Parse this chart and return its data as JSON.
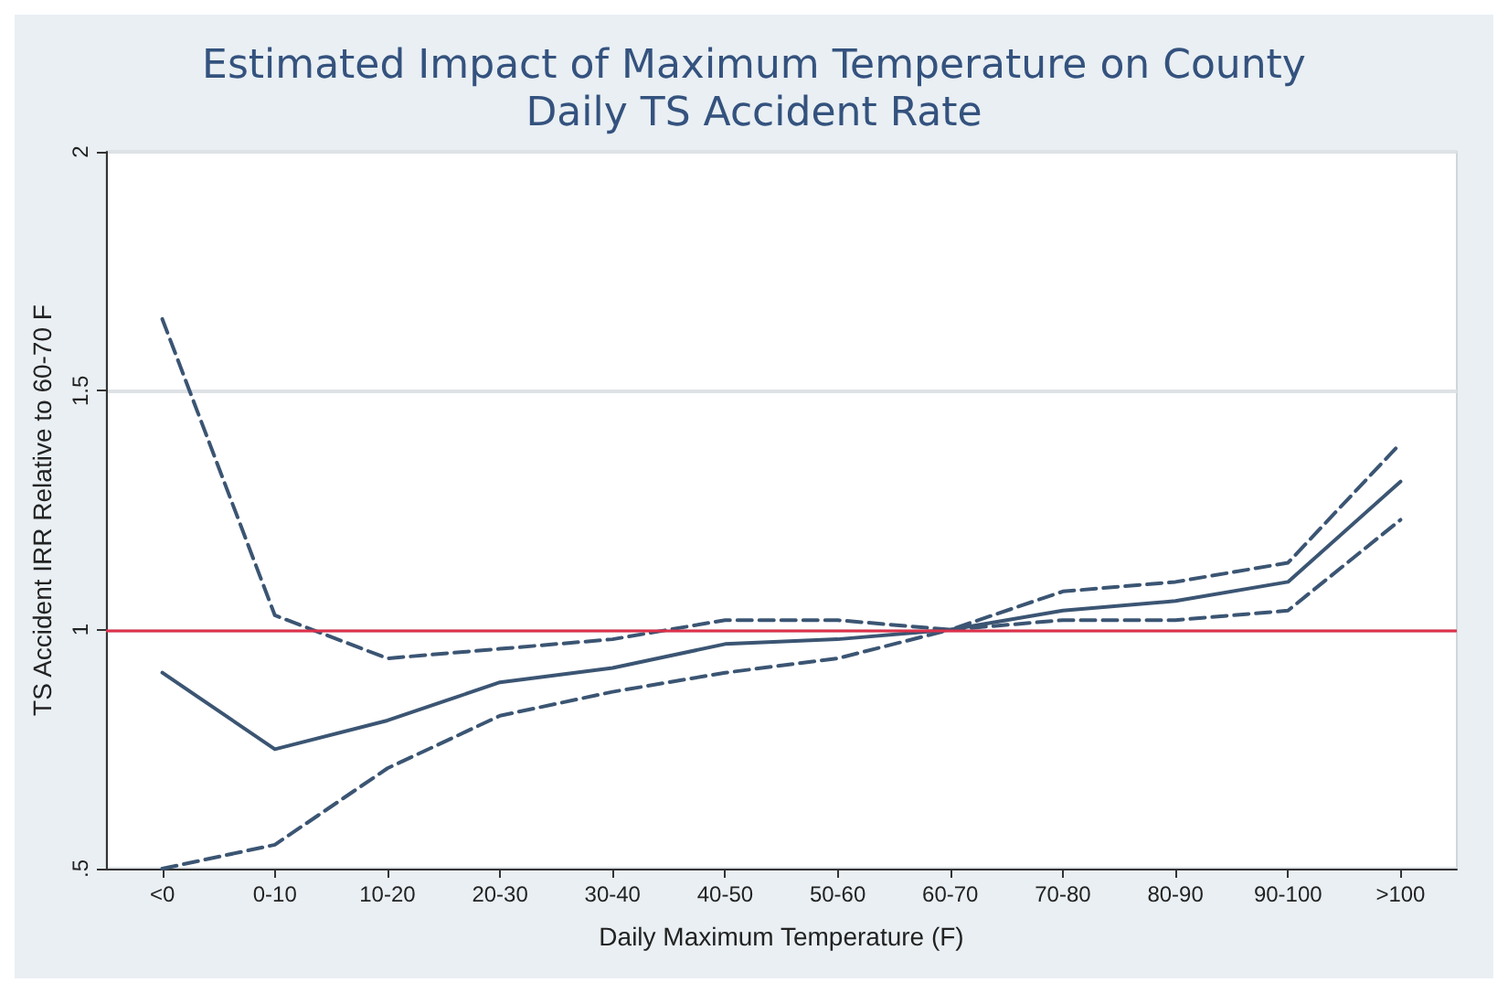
{
  "chart_data": {
    "type": "line",
    "title": "Estimated Impact of Maximum Temperature on County\nDaily TS Accident Rate",
    "xlabel": "Daily Maximum Temperature (F)",
    "ylabel": "TS Accident IRR Relative to 60-70 F",
    "categories": [
      "<0",
      "0-10",
      "10-20",
      "20-30",
      "30-40",
      "40-50",
      "50-60",
      "60-70",
      "70-80",
      "80-90",
      "90-100",
      ">100"
    ],
    "series": [
      {
        "color": "#3b5573",
        "line_style": "solid",
        "values": [
          0.91,
          0.75,
          0.81,
          0.89,
          0.92,
          0.97,
          0.98,
          1.0,
          1.04,
          1.06,
          1.1,
          1.31
        ]
      },
      {
        "color": "#3b5573",
        "line_style": "dashed",
        "values": [
          1.65,
          1.03,
          0.94,
          0.96,
          0.98,
          1.02,
          1.02,
          1.0,
          1.08,
          1.1,
          1.14,
          1.39
        ]
      },
      {
        "color": "#3b5573",
        "line_style": "dashed",
        "values": [
          0.5,
          0.55,
          0.71,
          0.82,
          0.87,
          0.91,
          0.94,
          1.0,
          1.02,
          1.02,
          1.04,
          1.23
        ]
      }
    ],
    "ylim": [
      0.5,
      2
    ],
    "yticks": [
      {
        "value": 0.5,
        "label": ".5"
      },
      1,
      1.5,
      2
    ],
    "grid": "y",
    "marker": "none",
    "ref_lines": [
      {
        "axis": "y",
        "value": 1,
        "color": "#e0304a"
      }
    ]
  }
}
